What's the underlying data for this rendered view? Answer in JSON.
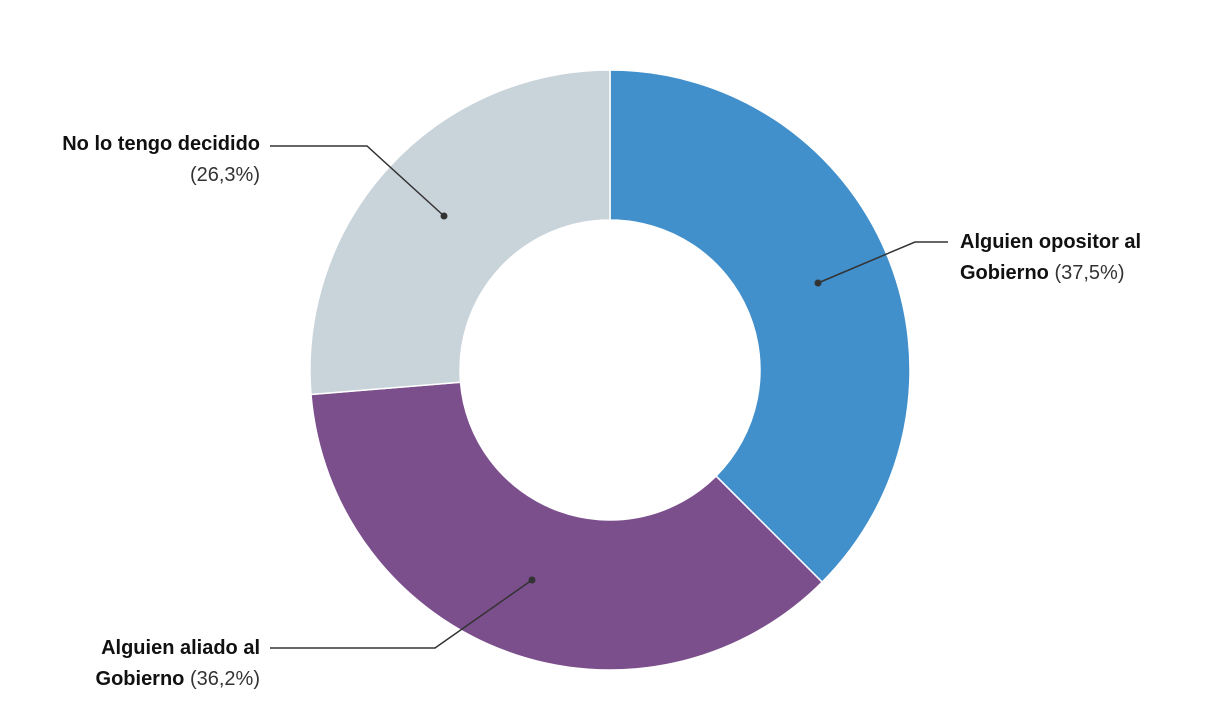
{
  "chart_data": {
    "type": "donut",
    "categories": [
      "Alguien opositor al Gobierno",
      "Alguien aliado al Gobierno",
      "No lo tengo decidido"
    ],
    "values": [
      37.5,
      36.2,
      26.3
    ],
    "value_labels": [
      "(37,5%)",
      "(36,2%)",
      "(26,3%)"
    ],
    "colors": [
      "#418fcb",
      "#7b4e8c",
      "#c9d3da"
    ]
  }
}
